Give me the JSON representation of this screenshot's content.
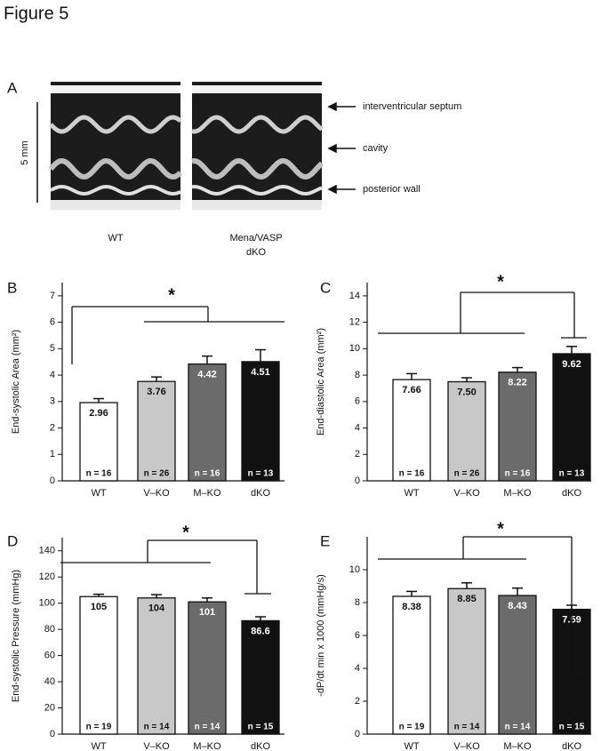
{
  "figure_title": "Figure 5",
  "panel_a": {
    "label": "A",
    "scale_label": "5 mm",
    "annotations": [
      "interventricular septum",
      "cavity",
      "posterior wall"
    ],
    "image_labels": [
      "WT",
      "Mena/VASP",
      "dKO"
    ]
  },
  "chart_data": [
    {
      "type": "bar",
      "panel": "B",
      "ylabel": "End-systolic Area (mm²)",
      "categories": [
        "WT",
        "V–KO",
        "M–KO",
        "dKO"
      ],
      "values": [
        2.96,
        3.76,
        4.42,
        4.51
      ],
      "errors": [
        0.15,
        0.17,
        0.3,
        0.45
      ],
      "colors": [
        "#ffffff",
        "#c8c8c8",
        "#6b6b6b",
        "#111111"
      ],
      "n_labels": [
        "n = 16",
        "n = 26",
        "n = 16",
        "n = 13"
      ],
      "annotation": "*",
      "ylim": [
        0,
        7.5
      ],
      "yticks": [
        0,
        1,
        2,
        3,
        4,
        5,
        6,
        7
      ]
    },
    {
      "type": "bar",
      "panel": "C",
      "ylabel": "End-diastolic Area (mm²)",
      "categories": [
        "WT",
        "V–KO",
        "M–KO",
        "dKO"
      ],
      "values": [
        7.66,
        7.5,
        8.22,
        9.62
      ],
      "value_labels": [
        "7.66",
        "7.50",
        "8.22",
        "9.62"
      ],
      "errors": [
        0.45,
        0.3,
        0.35,
        0.55
      ],
      "colors": [
        "#ffffff",
        "#c8c8c8",
        "#6b6b6b",
        "#111111"
      ],
      "n_labels": [
        "n = 16",
        "n = 26",
        "n = 16",
        "n = 13"
      ],
      "annotation": "*",
      "ylim": [
        0,
        15
      ],
      "yticks": [
        0,
        2,
        4,
        6,
        8,
        10,
        12,
        14
      ]
    },
    {
      "type": "bar",
      "panel": "D",
      "ylabel": "End-systolic Pressure (mmHg)",
      "categories": [
        "WT",
        "V–KO",
        "M–KO",
        "dKO"
      ],
      "values": [
        105,
        104,
        101,
        86.6
      ],
      "errors": [
        1.8,
        2.5,
        3,
        3
      ],
      "colors": [
        "#ffffff",
        "#c8c8c8",
        "#6b6b6b",
        "#111111"
      ],
      "n_labels": [
        "n = 19",
        "n = 14",
        "n = 14",
        "n = 15"
      ],
      "annotation": "*",
      "ylim": [
        0,
        150
      ],
      "yticks": [
        0,
        20,
        40,
        60,
        80,
        100,
        120,
        140
      ]
    },
    {
      "type": "bar",
      "panel": "E",
      "ylabel": "-dP/dt min x 1000 (mmHg/s)",
      "categories": [
        "WT",
        "V–KO",
        "M–KO",
        "dKO"
      ],
      "values": [
        8.38,
        8.85,
        8.43,
        7.59
      ],
      "errors": [
        0.3,
        0.35,
        0.45,
        0.25
      ],
      "colors": [
        "#ffffff",
        "#c8c8c8",
        "#6b6b6b",
        "#111111"
      ],
      "n_labels": [
        "n = 19",
        "n = 14",
        "n = 14",
        "n = 15"
      ],
      "annotation": "*",
      "ylim": [
        0,
        12
      ],
      "yticks": [
        0,
        2,
        4,
        6,
        8,
        10
      ]
    }
  ]
}
